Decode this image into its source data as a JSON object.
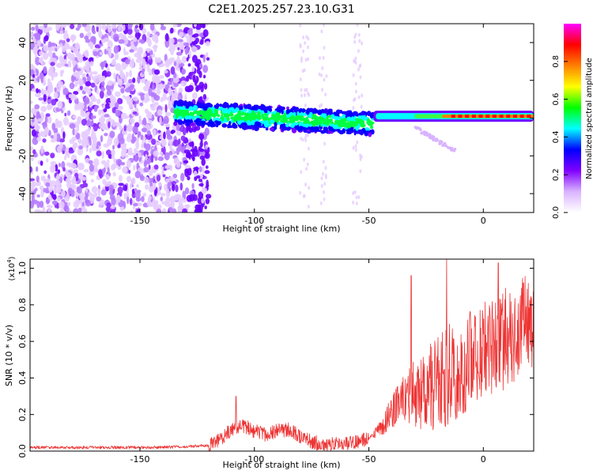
{
  "title": "C2E1.2025.257.23.10.G31",
  "colorbar": {
    "label": "Normalized spectral amplitude",
    "ticks": [
      0.0,
      0.2,
      0.4,
      0.6,
      0.8
    ],
    "tick_labels": [
      "0.0",
      "0.2",
      "0.4",
      "0.6",
      "0.8"
    ],
    "colors": [
      "#ffffff",
      "#d9b3ff",
      "#8000ff",
      "#0000ff",
      "#00ffff",
      "#00ff00",
      "#ffff00",
      "#ff8000",
      "#ff0000",
      "#ff00ff"
    ]
  },
  "chart_data": [
    {
      "type": "heatmap",
      "title": "C2E1.2025.257.23.10.G31",
      "xlabel": "Height of straight line (km)",
      "ylabel": "Frequency (Hz)",
      "xlim": [
        -198,
        22
      ],
      "ylim": [
        -50,
        50
      ],
      "xticks": [
        -150,
        -100,
        -50,
        0
      ],
      "xtick_labels": [
        "-150",
        "-100",
        "-50",
        "0"
      ],
      "yticks": [
        -40,
        -20,
        0,
        20,
        40
      ],
      "ytick_labels": [
        "-40",
        "-20",
        "0",
        "20",
        "40"
      ],
      "colorbar_range": [
        0,
        1
      ],
      "features": [
        {
          "name": "noise field",
          "x_range": [
            -198,
            -120
          ],
          "y_range": [
            -50,
            50
          ]
        },
        {
          "name": "signal band",
          "x_range": [
            -135,
            -48
          ],
          "y_center_start": 3,
          "y_center_end": -3
        },
        {
          "name": "strong carrier",
          "x_range": [
            -48,
            22
          ],
          "y_center": 1
        }
      ]
    },
    {
      "type": "line",
      "xlabel": "Height of straight line (km)",
      "ylabel": "SNR (10 * v/v)",
      "y_scale_label": "(x10",
      "y_scale_exp": "4",
      "y_scale_close": ")",
      "xlim": [
        -198,
        22
      ],
      "ylim": [
        0,
        1.05
      ],
      "xticks": [
        -150,
        -100,
        -50,
        0
      ],
      "xtick_labels": [
        "-150",
        "-100",
        "-50",
        "0"
      ],
      "yticks": [
        0.0,
        0.2,
        0.4,
        0.6,
        0.8,
        1.0
      ],
      "ytick_labels": [
        "0.0",
        "0.2",
        "0.4",
        "0.6",
        "0.8",
        "1.0"
      ],
      "color": "#ee3333",
      "series": [
        {
          "name": "SNR",
          "x": [
            -198,
            -190,
            -180,
            -170,
            -160,
            -150,
            -140,
            -130,
            -120,
            -115,
            -110,
            -105,
            -100,
            -95,
            -90,
            -85,
            -80,
            -75,
            -70,
            -65,
            -60,
            -55,
            -50,
            -45,
            -40,
            -35,
            -30,
            -25,
            -20,
            -15,
            -10,
            -5,
            0,
            5,
            10,
            15,
            20,
            22
          ],
          "y": [
            0.02,
            0.02,
            0.02,
            0.02,
            0.02,
            0.02,
            0.02,
            0.025,
            0.03,
            0.06,
            0.12,
            0.14,
            0.11,
            0.09,
            0.11,
            0.12,
            0.08,
            0.05,
            0.04,
            0.04,
            0.04,
            0.05,
            0.07,
            0.12,
            0.22,
            0.28,
            0.32,
            0.34,
            0.38,
            0.42,
            0.47,
            0.52,
            0.56,
            0.58,
            0.62,
            0.67,
            0.72,
            0.7
          ]
        }
      ],
      "spikes": [
        {
          "x": -108,
          "y": 0.3
        },
        {
          "x": -31.5,
          "y": 0.96
        },
        {
          "x": -16,
          "y": 1.05
        },
        {
          "x": 6.5,
          "y": 1.03
        },
        {
          "x": 17.5,
          "y": 0.92
        }
      ]
    }
  ]
}
